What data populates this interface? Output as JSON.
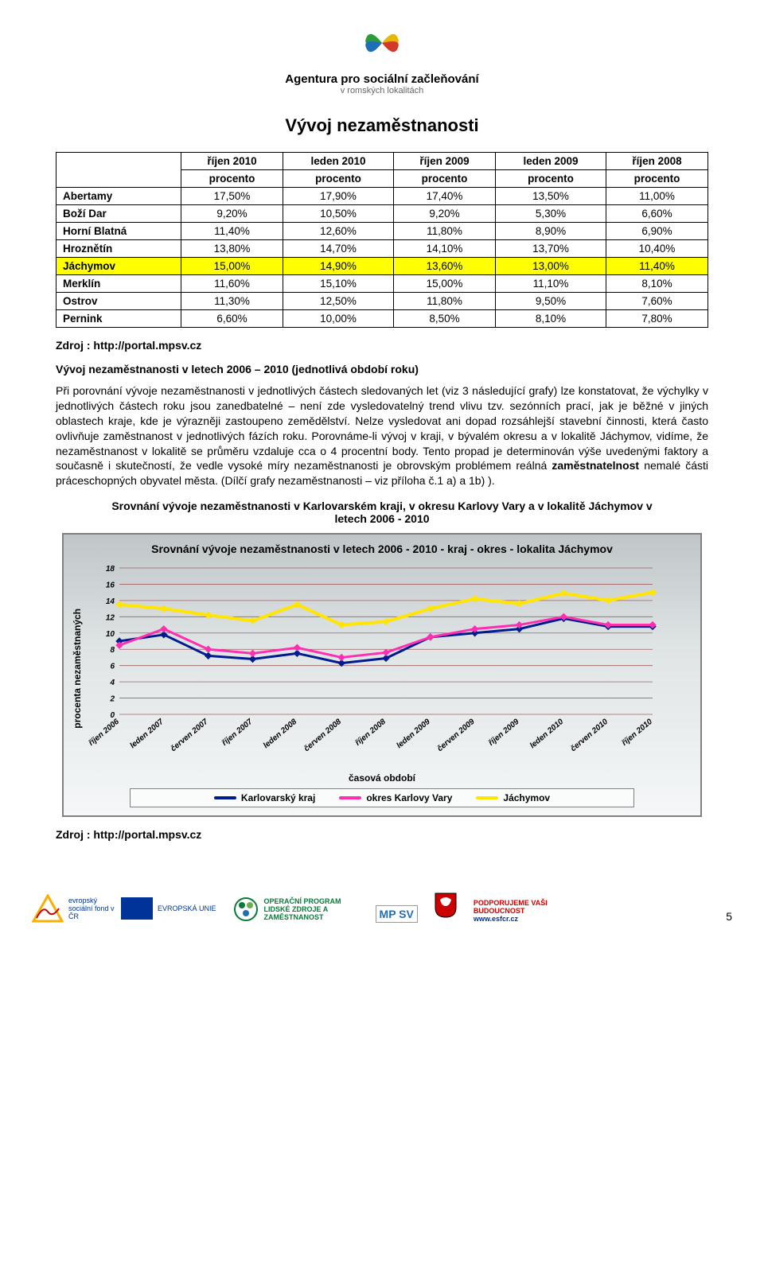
{
  "header": {
    "agency_name": "Agentura pro sociální začleňování",
    "agency_sub": "v romských lokalitách"
  },
  "title": "Vývoj nezaměstnanosti",
  "table": {
    "columns": [
      {
        "top": "říjen 2010",
        "bottom": "procento"
      },
      {
        "top": "leden 2010",
        "bottom": "procento"
      },
      {
        "top": "říjen 2009",
        "bottom": "procento"
      },
      {
        "top": "leden 2009",
        "bottom": "procento"
      },
      {
        "top": "říjen 2008",
        "bottom": "procento"
      }
    ],
    "rows": [
      {
        "label": "Abertamy",
        "vals": [
          "17,50%",
          "17,90%",
          "17,40%",
          "13,50%",
          "11,00%"
        ],
        "hl": false
      },
      {
        "label": "Boží Dar",
        "vals": [
          "9,20%",
          "10,50%",
          "9,20%",
          "5,30%",
          "6,60%"
        ],
        "hl": false
      },
      {
        "label": "Horní Blatná",
        "vals": [
          "11,40%",
          "12,60%",
          "11,80%",
          "8,90%",
          "6,90%"
        ],
        "hl": false
      },
      {
        "label": "Hroznětín",
        "vals": [
          "13,80%",
          "14,70%",
          "14,10%",
          "13,70%",
          "10,40%"
        ],
        "hl": false
      },
      {
        "label": "Jáchymov",
        "vals": [
          "15,00%",
          "14,90%",
          "13,60%",
          "13,00%",
          "11,40%"
        ],
        "hl": true
      },
      {
        "label": "Merklín",
        "vals": [
          "11,60%",
          "15,10%",
          "15,00%",
          "11,10%",
          "8,10%"
        ],
        "hl": false
      },
      {
        "label": "Ostrov",
        "vals": [
          "11,30%",
          "12,50%",
          "11,80%",
          "9,50%",
          "7,60%"
        ],
        "hl": false
      },
      {
        "label": "Pernink",
        "vals": [
          "6,60%",
          "10,00%",
          "8,50%",
          "8,10%",
          "7,80%"
        ],
        "hl": false
      }
    ]
  },
  "source_label": "Zdroj : http://portal.mpsv.cz",
  "subheading": "Vývoj nezaměstnanosti v letech 2006 – 2010 (jednotlivá období roku)",
  "body_text": "Při porovnání vývoje nezaměstnanosti v jednotlivých částech sledovaných let (viz 3 následující grafy) lze konstatovat, že výchylky v jednotlivých částech roku jsou zanedbatelné – není zde vysledovatelný trend vlivu tzv. sezónních prací, jak je běžné v jiných oblastech kraje, kde je výrazněji zastoupeno zemědělství. Nelze vysledovat ani dopad rozsáhlejší stavební činnosti, která často ovlivňuje zaměstnanost v jednotlivých fázích roku. Porovnáme-li vývoj v kraji, v bývalém okresu a v lokalitě Jáchymov, vidíme, že nezaměstnanost v lokalitě se průměru vzdaluje cca o 4 procentní body. Tento propad je determinován výše uvedenými faktory a současně i skutečností, že vedle vysoké míry nezaměstnanosti je obrovským problémem reálná zaměstnatelnost nemalé části práceschopných obyvatel města.     (Dílčí grafy nezaměstnanosti – viz příloha č.1 a) a 1b) ).",
  "chart_caption": "Srovnání vývoje nezaměstnanosti v Karlovarském kraji, v okresu Karlovy Vary a v lokalitě Jáchymov v letech 2006 - 2010",
  "chart": {
    "type": "line",
    "title": "Srovnání vývoje nezaměstnanosti v letech 2006 - 2010 - kraj - okres - lokalita Jáchymov",
    "ylabel": "procenta nezaměstnaných",
    "xlabel": "časová období",
    "ylim": [
      0,
      18
    ],
    "ytick_step": 2,
    "yticks": [
      0,
      2,
      4,
      6,
      8,
      10,
      12,
      14,
      16,
      18
    ],
    "categories": [
      "říjen 2006",
      "leden 2007",
      "červen 2007",
      "říjen 2007",
      "leden 2008",
      "červen 2008",
      "říjen 2008",
      "leden 2009",
      "červen 2009",
      "říjen 2009",
      "leden 2010",
      "červen 2010",
      "říjen 2010"
    ],
    "series": [
      {
        "name": "Karlovarský kraj",
        "color": "#001b8f",
        "width": 3,
        "values": [
          9.0,
          9.8,
          7.2,
          6.8,
          7.5,
          6.3,
          6.9,
          9.5,
          10.0,
          10.5,
          11.8,
          10.8,
          10.8
        ]
      },
      {
        "name": "okres Karlovy Vary",
        "color": "#ff2fb0",
        "width": 3,
        "values": [
          8.5,
          10.5,
          8.0,
          7.5,
          8.2,
          7.0,
          7.6,
          9.5,
          10.5,
          11.0,
          12.0,
          11.0,
          11.0
        ]
      },
      {
        "name": "Jáchymov",
        "color": "#ffe500",
        "width": 4,
        "values": [
          13.5,
          13.0,
          12.2,
          11.5,
          13.5,
          11.0,
          11.4,
          13.0,
          14.2,
          13.6,
          14.9,
          14.0,
          15.0
        ]
      }
    ],
    "background_gradient": [
      "#bfc6c8",
      "#f5f7f8"
    ],
    "grid_color": "#a06060",
    "tick_font_size": 10,
    "label_font_size": 12,
    "title_font_size": 14,
    "marker_style": "diamond",
    "marker_size": 4
  },
  "footer": {
    "pagenum": "5",
    "logos": {
      "esf": "evropský sociální fond v ČR",
      "eu": "EVROPSKÁ UNIE",
      "op": "OPERAČNÍ PROGRAM LIDSKÉ ZDROJE A ZAMĚSTNANOST",
      "mpsv": "MP SV",
      "esfcr": "PODPORUJEME VAŠI BUDOUCNOST",
      "esfcr_url": "www.esfcr.cz"
    }
  }
}
